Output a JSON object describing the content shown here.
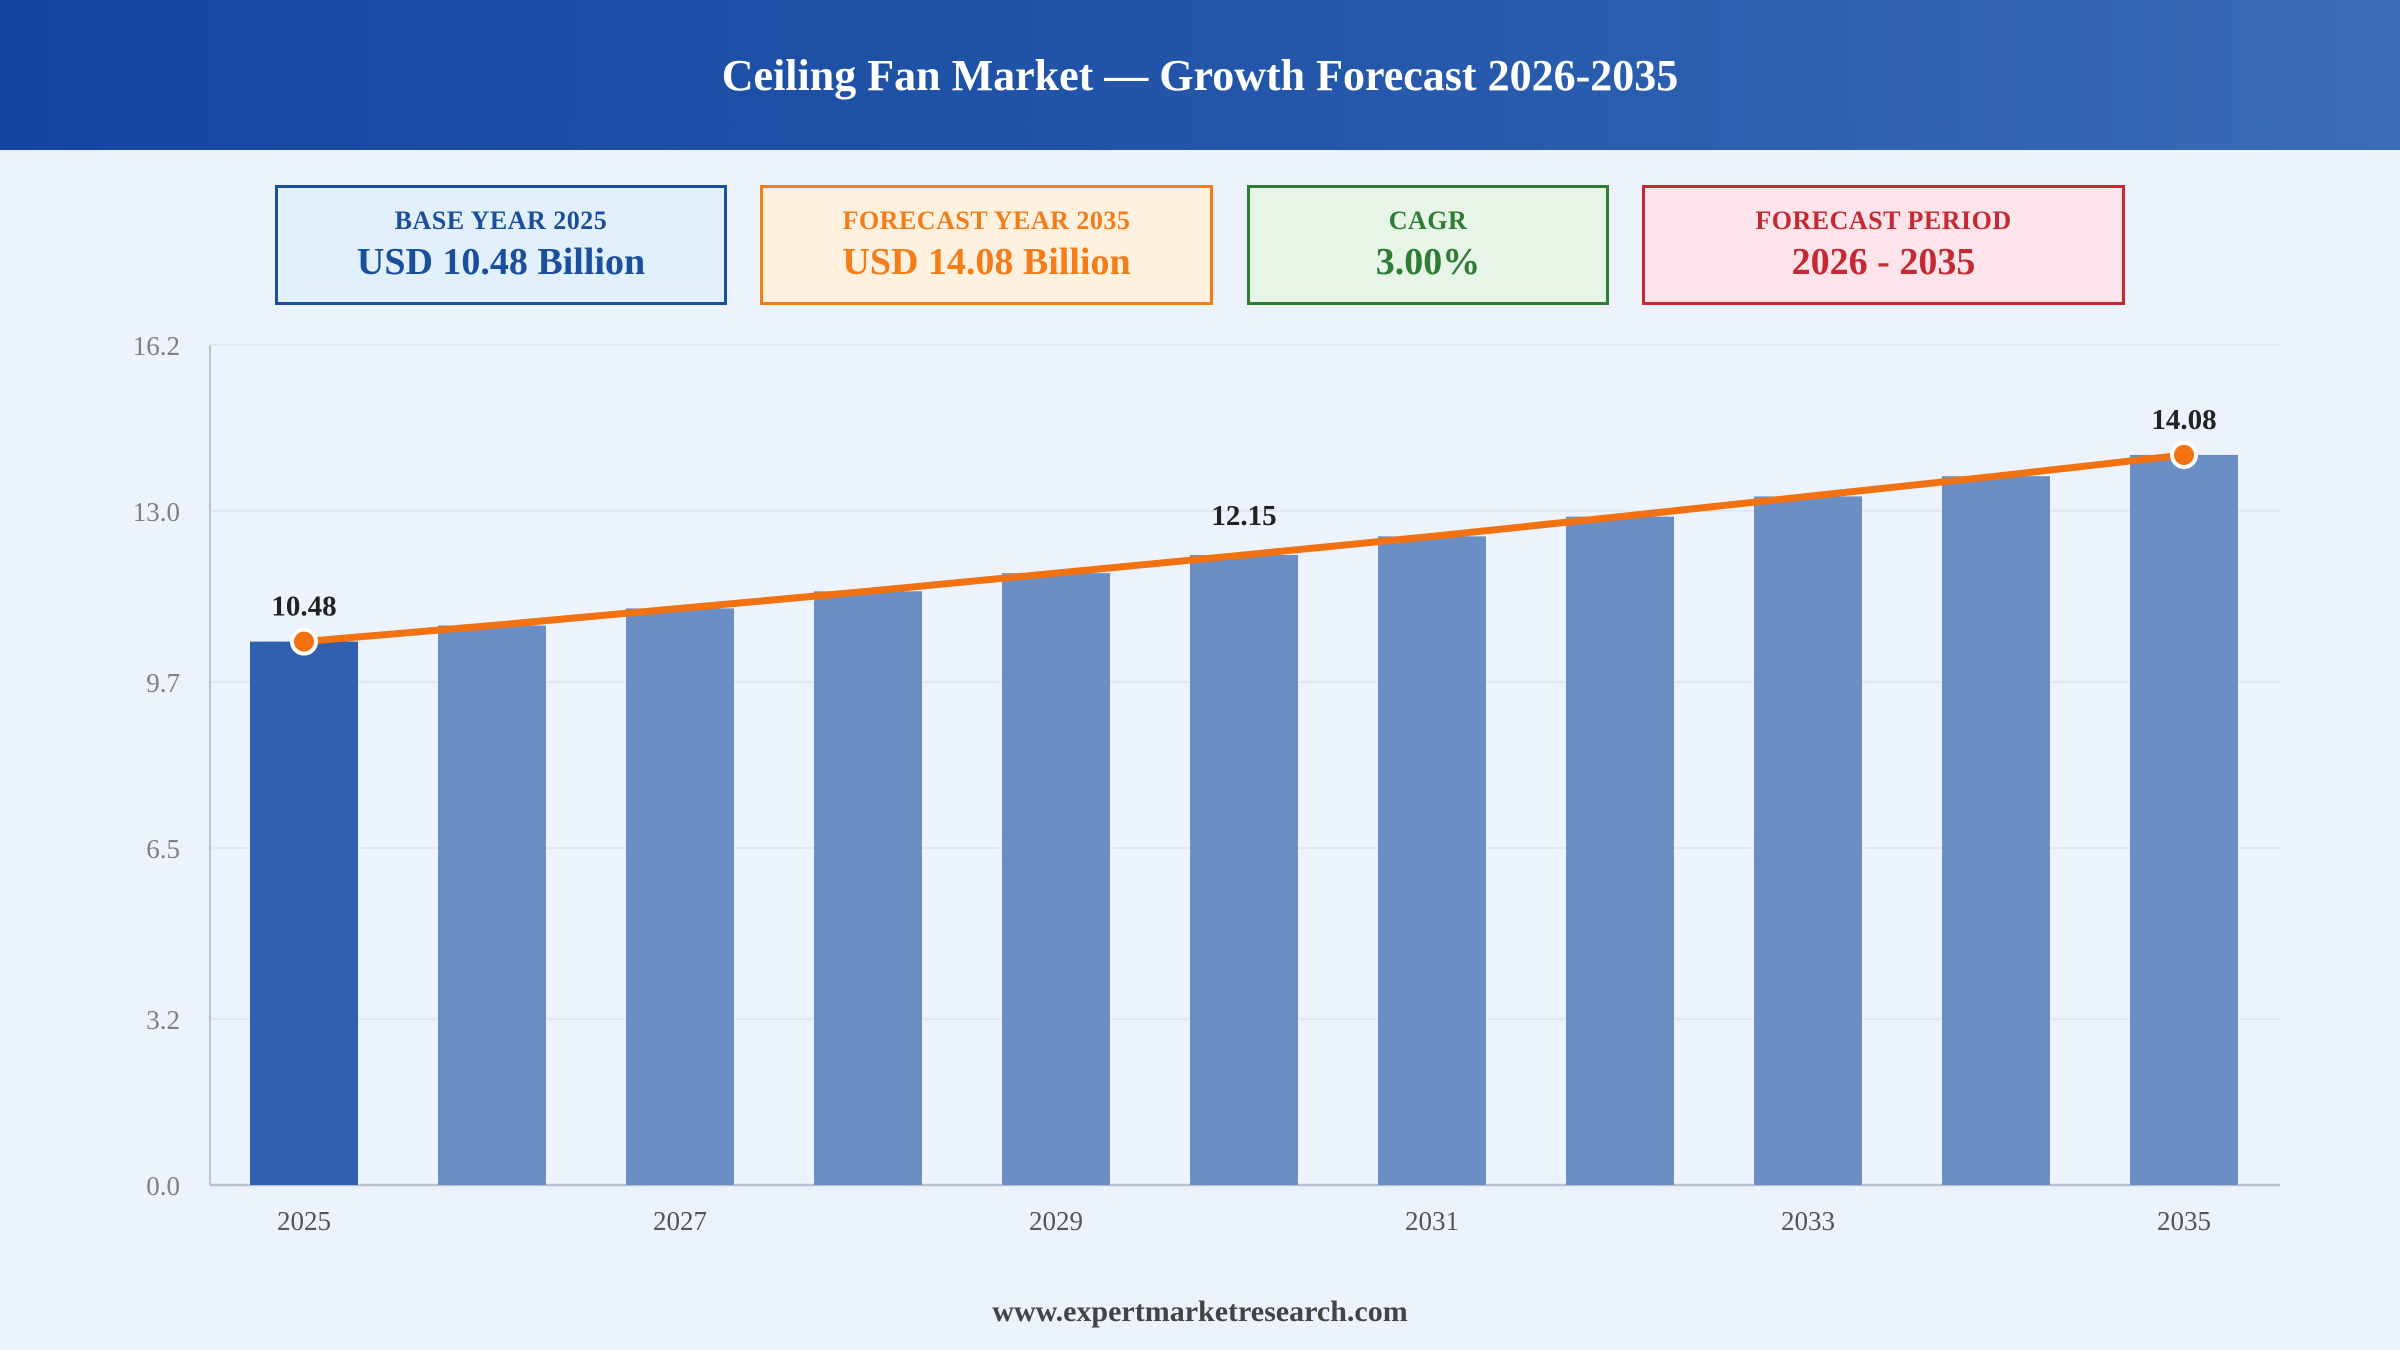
{
  "title": "Ceiling Fan Market — Growth Forecast 2026-2035",
  "kpis": [
    {
      "label": "BASE YEAR 2025",
      "value": "USD 10.48 Billion"
    },
    {
      "label": "FORECAST YEAR 2035",
      "value": "USD 14.08 Billion"
    },
    {
      "label": "CAGR",
      "value": "3.00%"
    },
    {
      "label": "FORECAST PERIOD",
      "value": "2026 - 2035"
    }
  ],
  "footer": "www.expertmarketresearch.com",
  "colors": {
    "base_bar": "#2f5fad",
    "forecast_bar": "#6b8fc4",
    "trend_line": "#f27211",
    "grid": "#dde4ee",
    "axis": "#b9c2cf",
    "tick_text": "#808080",
    "label_text": "#222222"
  },
  "chart_data": {
    "type": "bar",
    "x": [
      2025,
      2026,
      2027,
      2028,
      2029,
      2030,
      2031,
      2032,
      2033,
      2034,
      2035
    ],
    "values": [
      10.48,
      10.79,
      11.12,
      11.45,
      11.8,
      12.15,
      12.51,
      12.89,
      13.28,
      13.67,
      14.08
    ],
    "x_tick_labels": [
      "2025",
      "2027",
      "2029",
      "2031",
      "2033",
      "2035"
    ],
    "y_ticks": [
      "0.0",
      "3.2",
      "6.5",
      "9.7",
      "13.0",
      "16.2"
    ],
    "ylim": [
      0,
      16.2
    ],
    "data_labels": [
      {
        "x": 2025,
        "text": "10.48"
      },
      {
        "x": 2030,
        "text": "12.15"
      },
      {
        "x": 2035,
        "text": "14.08"
      }
    ],
    "trend_line": true,
    "trend_markers": [
      2025,
      2035
    ],
    "grid": true,
    "legend": "none"
  }
}
